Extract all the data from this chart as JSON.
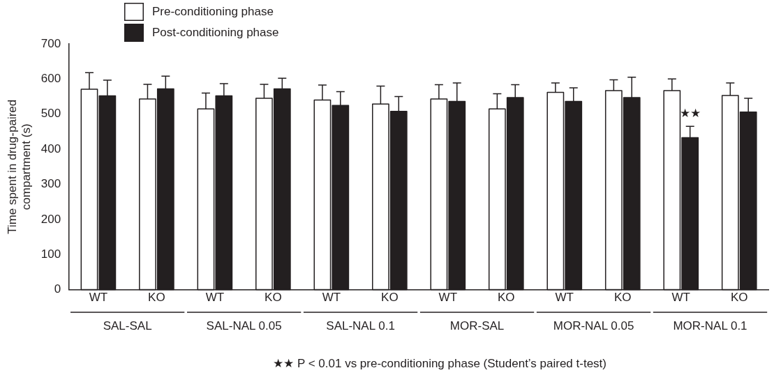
{
  "chart_data": {
    "type": "bar",
    "ylabel": "Time spent in drug-paired compartment (s)",
    "categories": [
      "WT",
      "KO",
      "WT",
      "KO",
      "WT",
      "KO",
      "WT",
      "KO",
      "WT",
      "KO",
      "WT",
      "KO"
    ],
    "series": [
      {
        "name": "Pre-conditioning phase",
        "color": "#ffffff",
        "values": [
          571,
          543,
          515,
          545,
          540,
          529,
          543,
          515,
          562,
          567,
          567,
          553
        ],
        "errors": [
          [
            571,
            618
          ],
          [
            543,
            585
          ],
          [
            515,
            560
          ],
          [
            545,
            585
          ],
          [
            540,
            583
          ],
          [
            529,
            580
          ],
          [
            543,
            584
          ],
          [
            515,
            558
          ],
          [
            562,
            589
          ],
          [
            567,
            598
          ],
          [
            567,
            600
          ],
          [
            553,
            589
          ]
        ]
      },
      {
        "name": "Post-conditioning phase",
        "color": "#231f20",
        "values": [
          552,
          572,
          552,
          572,
          525,
          508,
          536,
          547,
          536,
          547,
          433,
          506
        ],
        "errors": [
          [
            552,
            597
          ],
          [
            572,
            608
          ],
          [
            552,
            587
          ],
          [
            572,
            602
          ],
          [
            525,
            564
          ],
          [
            508,
            550
          ],
          [
            536,
            589
          ],
          [
            547,
            584
          ],
          [
            536,
            575
          ],
          [
            547,
            605
          ],
          [
            433,
            465
          ],
          [
            506,
            545
          ]
        ],
        "value_labels": [
          null,
          null,
          null,
          null,
          null,
          null,
          null,
          null,
          null,
          null,
          "★★",
          null
        ]
      }
    ],
    "ylim": [
      0,
      700
    ],
    "yticks": [
      0,
      100,
      200,
      300,
      400,
      500,
      600,
      700
    ],
    "grid": false,
    "legend": "top left",
    "annotations": [
      "SAL-SAL",
      "SAL-NAL 0.05",
      "SAL-NAL 0.1",
      "MOR-SAL",
      "MOR-NAL 0.05",
      "MOR-NAL 0.1",
      "★★ P < 0.01 vs pre-conditioning phase (Student’s paired t-test)"
    ]
  }
}
